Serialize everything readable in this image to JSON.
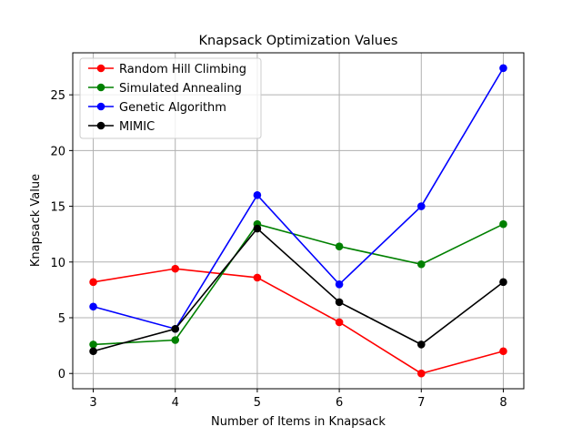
{
  "chart_data": {
    "type": "line",
    "title": "Knapsack Optimization Values",
    "xlabel": "Number of Items in Knapsack",
    "ylabel": "Knapsack Value",
    "x": [
      3,
      4,
      5,
      6,
      7,
      8
    ],
    "xlim": [
      2.75,
      8.25
    ],
    "ylim": [
      -1.37,
      28.77
    ],
    "xticks": [
      3,
      4,
      5,
      6,
      7,
      8
    ],
    "yticks": [
      0,
      5,
      10,
      15,
      20,
      25
    ],
    "grid": true,
    "legend_position": "upper-left",
    "series": [
      {
        "name": "Random Hill Climbing",
        "color": "#ff0000",
        "values": [
          8.2,
          9.4,
          8.6,
          4.6,
          0.0,
          2.0
        ]
      },
      {
        "name": "Simulated Annealing",
        "color": "#008000",
        "values": [
          2.6,
          3.0,
          13.4,
          11.4,
          9.8,
          13.4
        ]
      },
      {
        "name": "Genetic Algorithm",
        "color": "#0000ff",
        "values": [
          6.0,
          4.0,
          16.0,
          8.0,
          15.0,
          27.4
        ]
      },
      {
        "name": "MIMIC",
        "color": "#000000",
        "values": [
          2.0,
          4.0,
          13.0,
          6.4,
          2.6,
          8.2
        ]
      }
    ]
  }
}
